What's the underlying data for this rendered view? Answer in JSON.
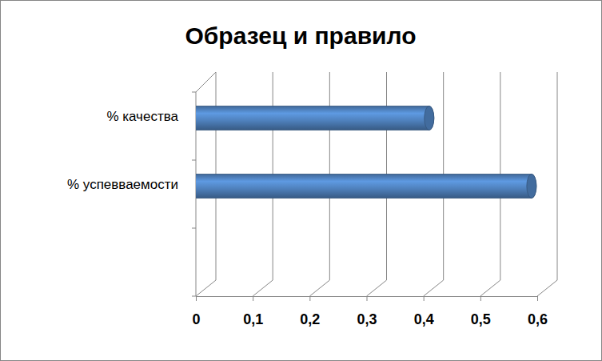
{
  "chart_data": {
    "type": "bar",
    "title": "Образец и правило",
    "orientation": "horizontal",
    "categories": [
      "% качества",
      "% успевваемости",
      null
    ],
    "values": [
      0.41,
      0.59,
      null
    ],
    "color": "#4f81bd",
    "xlim": [
      0,
      0.6
    ],
    "xticks": [
      0,
      {
        "value": 0.1,
        "label": "0,1"
      },
      {
        "value": 0.2,
        "label": "0,2"
      },
      {
        "value": 0.3,
        "label": "0,3"
      },
      {
        "value": 0.4,
        "label": "0,4"
      },
      {
        "value": 0.5,
        "label": "0,5"
      },
      {
        "value": 0.6,
        "label": "0,6"
      }
    ],
    "grid": true
  }
}
